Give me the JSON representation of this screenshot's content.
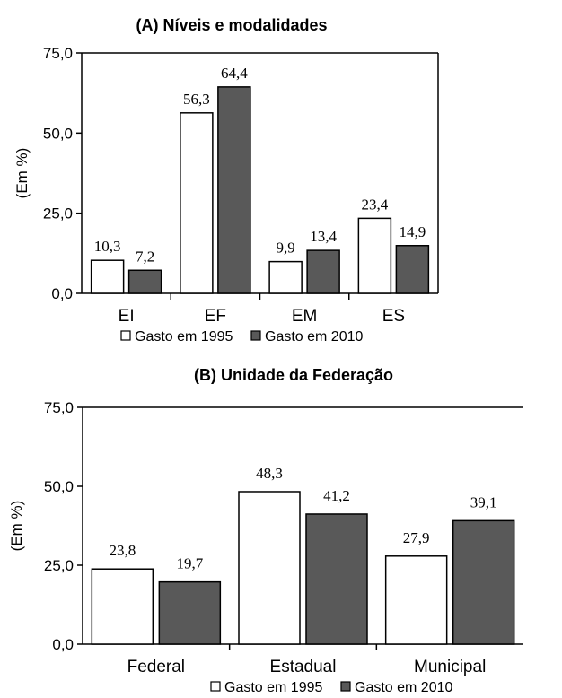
{
  "chart_data": [
    {
      "type": "bar",
      "title": "(A) Níveis e modalidades",
      "ylabel": "(Em %)",
      "xlabel": "",
      "ylim": [
        0,
        75
      ],
      "yticks": [
        "0,0",
        "25,0",
        "50,0",
        "75,0"
      ],
      "categories": [
        "EI",
        "EF",
        "EM",
        "ES"
      ],
      "series": [
        {
          "name": "Gasto em 1995",
          "values": [
            10.3,
            56.3,
            9.9,
            23.4
          ],
          "labels": [
            "10,3",
            "56,3",
            "9,9",
            "23,4"
          ],
          "color": "#ffffff"
        },
        {
          "name": "Gasto em 2010",
          "values": [
            7.2,
            64.4,
            13.4,
            14.9
          ],
          "labels": [
            "7,2",
            "64,4",
            "13,4",
            "14,9"
          ],
          "color": "#595959"
        }
      ],
      "legend_position": "bottom",
      "frame": "box"
    },
    {
      "type": "bar",
      "title": "(B) Unidade da Federação",
      "ylabel": "(Em %)",
      "xlabel": "",
      "ylim": [
        0,
        75
      ],
      "yticks": [
        "0,0",
        "25,0",
        "50,0",
        "75,0"
      ],
      "categories": [
        "Federal",
        "Estadual",
        "Municipal"
      ],
      "series": [
        {
          "name": "Gasto em 1995",
          "values": [
            23.8,
            48.3,
            27.9
          ],
          "labels": [
            "23,8",
            "48,3",
            "27,9"
          ],
          "color": "#ffffff"
        },
        {
          "name": "Gasto em 2010",
          "values": [
            19.7,
            41.2,
            39.1
          ],
          "labels": [
            "19,7",
            "41,2",
            "39,1"
          ],
          "color": "#595959"
        }
      ],
      "legend_position": "bottom",
      "frame": "axes"
    }
  ]
}
